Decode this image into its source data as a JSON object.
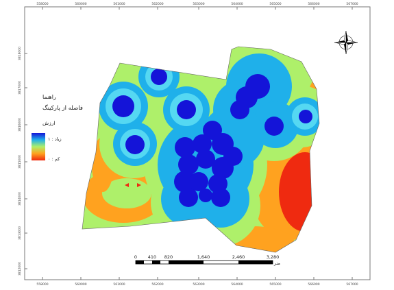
{
  "legend": {
    "title": "راهنما",
    "layer_name": "فاصله از پارکینگ",
    "value_heading": "ارزش",
    "high_label": "زیاد : ۱",
    "low_label": "کم : ۰"
  },
  "scalebar": {
    "ticks": [
      "0",
      "410",
      "820",
      "1,640",
      "2,460",
      "3,280"
    ],
    "unit": "متر"
  },
  "grid": {
    "top_labels": [
      "558000",
      "560000",
      "561000",
      "562000",
      "563000",
      "564000",
      "565000",
      "566000",
      "567000"
    ],
    "bottom_labels": [
      "558000",
      "560000",
      "561000",
      "562000",
      "563000",
      "564000",
      "565000",
      "566000",
      "567000"
    ],
    "left_labels": [
      "3818000",
      "3817000",
      "3816000",
      "3815000",
      "3814000",
      "3813000",
      "3812000"
    ]
  },
  "colors": {
    "ramp_high": "#1010d0",
    "ramp_low": "#e01010",
    "c1": "#1414d8",
    "c2": "#1fb0ea",
    "c3": "#aef06a",
    "c4": "#ffa21f",
    "c5": "#ef2a10"
  },
  "icons": {
    "north_arrow": "compass-rose-icon"
  }
}
